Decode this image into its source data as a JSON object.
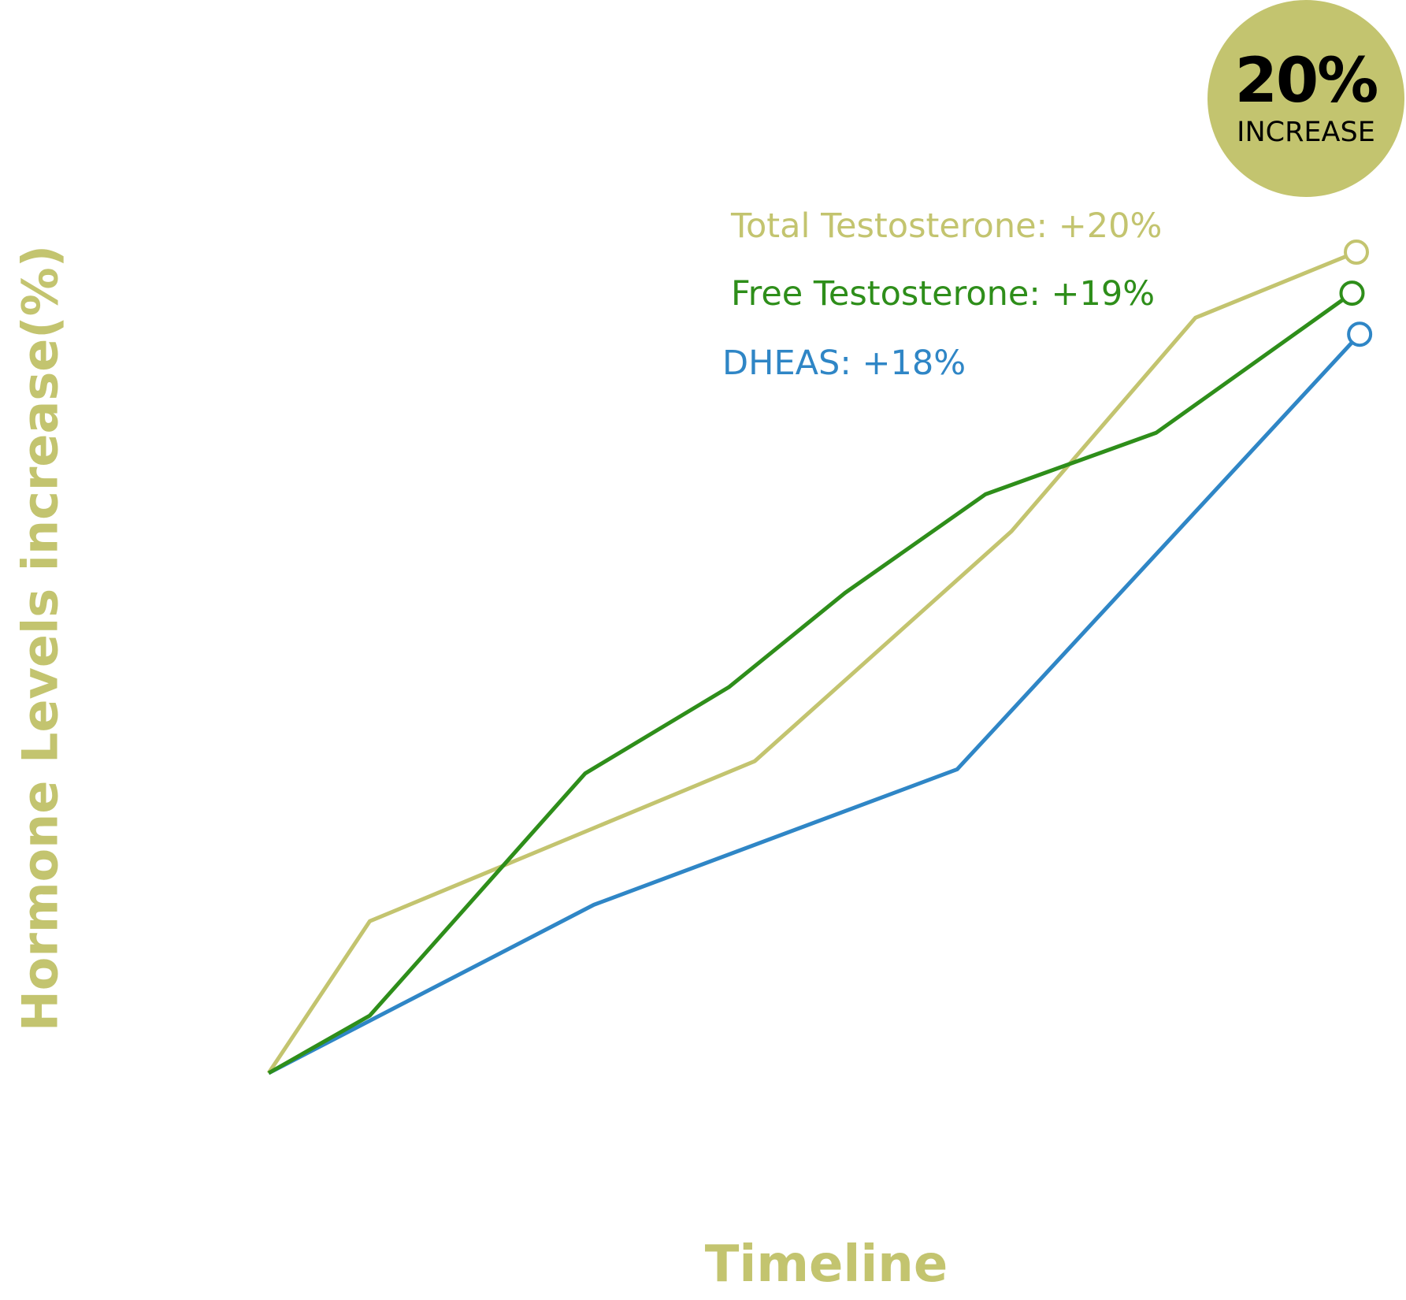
{
  "chart_data": {
    "type": "line",
    "title": "",
    "xlabel": "Timeline",
    "ylabel": "Hormone Levels increase(%)",
    "xlim": [
      0,
      100
    ],
    "ylim": [
      0,
      20
    ],
    "grid": false,
    "series": [
      {
        "name": "Total Testosterone",
        "label": "Total Testosterone: +20%",
        "color": "#c3c46f",
        "x": [
          0,
          9.3,
          44.7,
          68.3,
          85.2,
          100
        ],
        "y": [
          0,
          3.7,
          7.6,
          13.2,
          18.4,
          20.0
        ]
      },
      {
        "name": "Free Testosterone",
        "label": "Free Testosterone: +19%",
        "color": "#2e8e1a",
        "x": [
          0,
          9.3,
          29.1,
          42.3,
          53.0,
          65.9,
          81.6,
          99.6
        ],
        "y": [
          0,
          1.4,
          7.3,
          9.4,
          11.7,
          14.1,
          15.6,
          19.0
        ]
      },
      {
        "name": "DHEAS",
        "label": "DHEAS: +18%",
        "color": "#2f86c6",
        "x": [
          0,
          29.9,
          63.3,
          100.3
        ],
        "y": [
          0,
          4.1,
          7.4,
          18.0
        ]
      }
    ]
  },
  "badge": {
    "value": "20%",
    "text": "INCREASE",
    "color": "#c3c46f"
  }
}
